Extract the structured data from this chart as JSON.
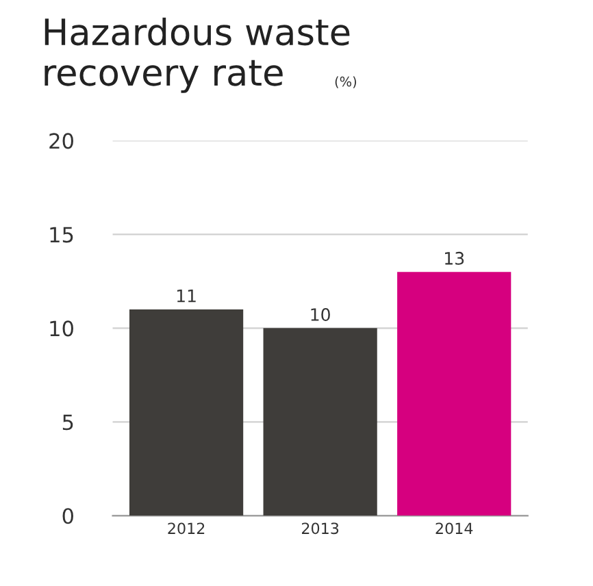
{
  "chart_data": {
    "type": "bar",
    "title": "Hazardous waste recovery rate",
    "subtitle": "(%)",
    "categories": [
      "2012",
      "2013",
      "2014"
    ],
    "values": [
      11,
      10,
      13
    ],
    "colors": [
      "#3f3d3a",
      "#3f3d3a",
      "#d6007f"
    ],
    "ylim": [
      0,
      20
    ],
    "yticks": [
      0,
      5,
      10,
      15,
      20
    ],
    "grid": "y",
    "data_labels": true
  }
}
